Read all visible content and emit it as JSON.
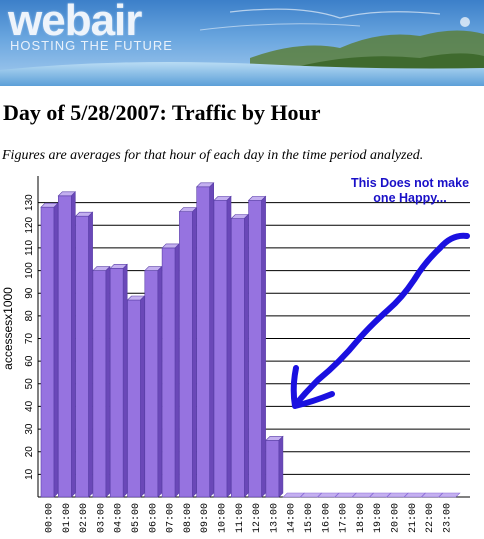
{
  "banner": {
    "logo_text": "webair",
    "tagline": "HOSTING THE FUTURE"
  },
  "page": {
    "title": "Day of 5/28/2007: Traffic by Hour",
    "subtitle": "Figures are averages for that hour of each day in the time period analyzed."
  },
  "annotation": {
    "text": "This Does not make one Happy...",
    "color": "#1a10c8"
  },
  "chart_data": {
    "type": "bar",
    "title": "",
    "xlabel": "",
    "ylabel": "accessesx1000",
    "ylim": [
      0,
      140
    ],
    "yticks": [
      10,
      20,
      30,
      40,
      50,
      60,
      70,
      80,
      90,
      100,
      110,
      120,
      130
    ],
    "grid": true,
    "bar_color": "#9673e0",
    "categories": [
      "00:00",
      "01:00",
      "02:00",
      "03:00",
      "04:00",
      "05:00",
      "06:00",
      "07:00",
      "08:00",
      "09:00",
      "10:00",
      "11:00",
      "12:00",
      "13:00",
      "14:00",
      "15:00",
      "16:00",
      "17:00",
      "18:00",
      "19:00",
      "20:00",
      "21:00",
      "22:00",
      "23:00"
    ],
    "values": [
      128,
      133,
      124,
      100,
      101,
      87,
      100,
      110,
      126,
      137,
      131,
      123,
      131,
      25,
      0,
      0,
      0,
      0,
      0,
      0,
      0,
      0,
      0,
      0
    ]
  }
}
